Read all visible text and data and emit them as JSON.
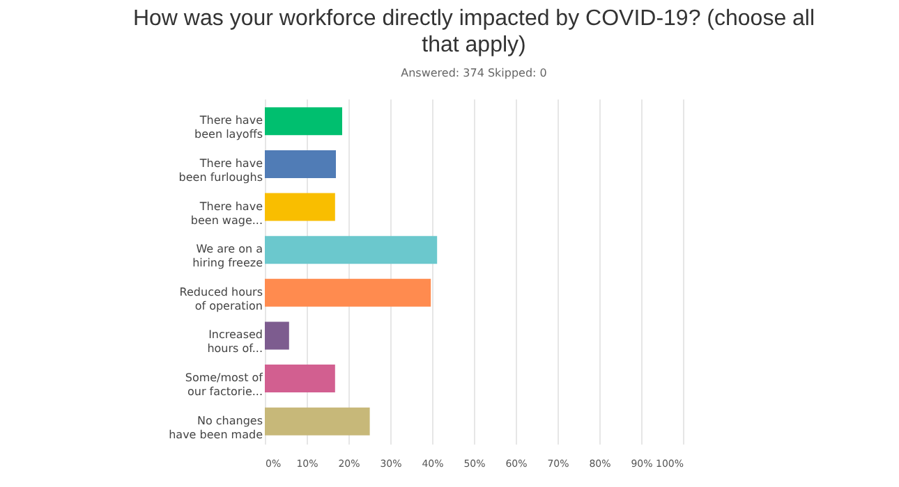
{
  "chart_data": {
    "type": "bar",
    "orientation": "horizontal",
    "title": "How was your workforce directly impacted by COVID-19? (choose all that apply)",
    "subtitle": "Answered: 374    Skipped: 0",
    "categories": [
      "There have been layoffs",
      "There have been furloughs",
      "There have been wage...",
      "We are on a hiring freeze",
      "Reduced hours of operation",
      "Increased hours of...",
      "Some/most of our factorie...",
      "No changes have been made"
    ],
    "values": [
      18.5,
      17,
      16.8,
      41.2,
      39.7,
      5.8,
      16.8,
      25.1
    ],
    "colors": [
      "#00bf6f",
      "#507cb6",
      "#f9be00",
      "#6bc8cd",
      "#ff8b4f",
      "#7d5c8f",
      "#d25f90",
      "#c7b879"
    ],
    "xlim": [
      0,
      100
    ],
    "xticks": [
      {
        "value": 0,
        "label": "0%"
      },
      {
        "value": 10,
        "label": "10%"
      },
      {
        "value": 20,
        "label": "20%"
      },
      {
        "value": 30,
        "label": "30%"
      },
      {
        "value": 40,
        "label": "40%"
      },
      {
        "value": 50,
        "label": "50%"
      },
      {
        "value": 60,
        "label": "60%"
      },
      {
        "value": 70,
        "label": "70%"
      },
      {
        "value": 80,
        "label": "80%"
      },
      {
        "value": 90,
        "label": "90%"
      },
      {
        "value": 100,
        "label": "100%"
      }
    ],
    "grid": "x"
  }
}
